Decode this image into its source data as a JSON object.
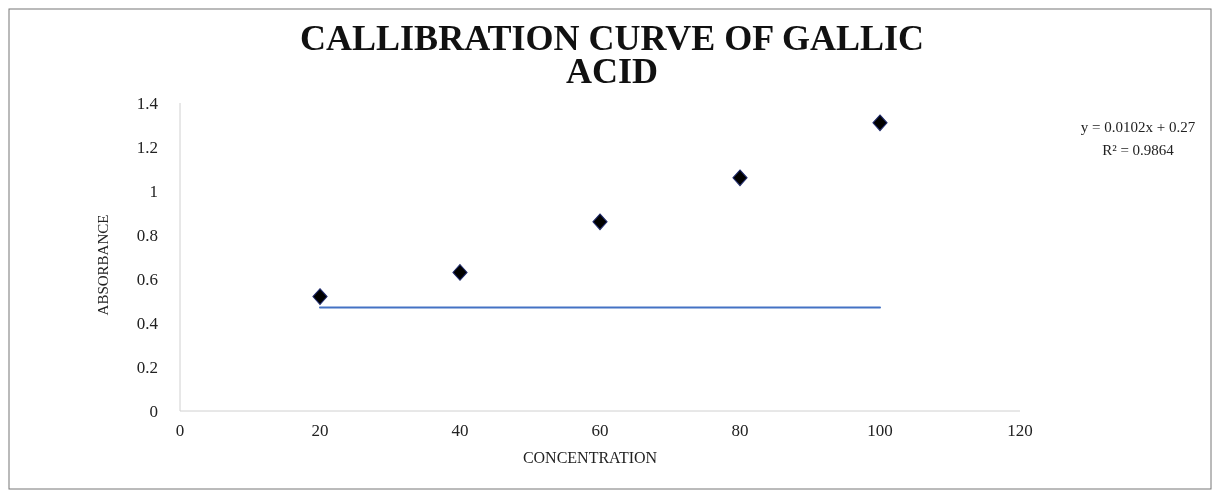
{
  "chart_data": {
    "type": "scatter",
    "title": "CALLIBRATION CURVE OF GALLIC ACID",
    "xlabel": "CONCENTRATION",
    "ylabel": "ABSORBANCE",
    "x": [
      20,
      40,
      60,
      80,
      100
    ],
    "series": [
      {
        "color": "#000000",
        "marker": "diamond",
        "values": [
          0.52,
          0.63,
          0.86,
          1.06,
          1.31
        ]
      },
      {
        "type": "line",
        "color": "#4472c4",
        "x": [
          20,
          100
        ],
        "values": [
          0.47,
          0.47
        ]
      }
    ],
    "xlim": [
      0,
      120
    ],
    "xticks": [
      0,
      20,
      40,
      60,
      80,
      100,
      120
    ],
    "ylim": [
      0,
      1.4
    ],
    "yticks": [
      0,
      0.2,
      0.4,
      0.6,
      0.8,
      1,
      1.2,
      1.4
    ],
    "annotations": [
      "y = 0.0102x + 0.27",
      "R² = 0.9864"
    ]
  }
}
